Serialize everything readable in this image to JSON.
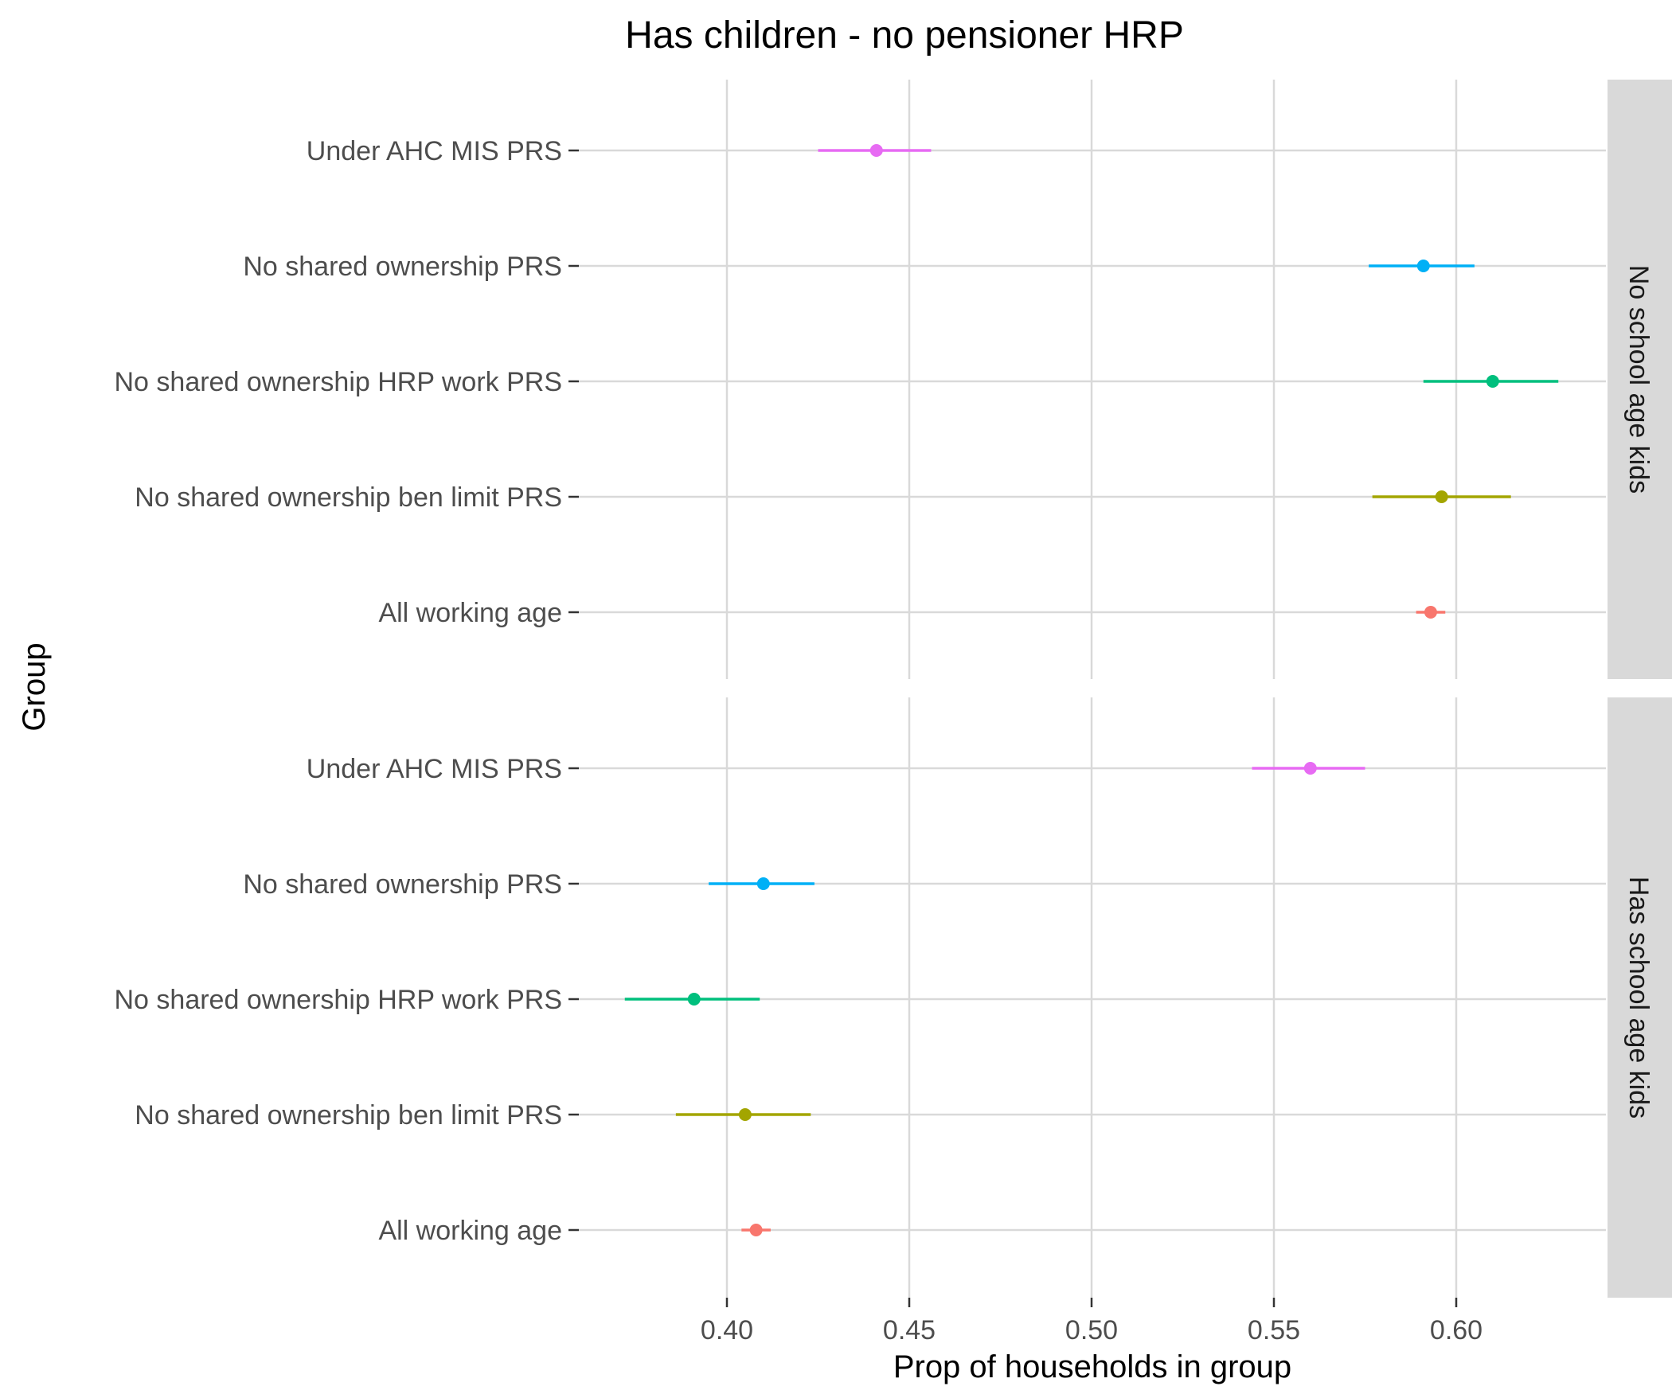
{
  "chart_data": {
    "type": "scatter",
    "title": "Has children - no pensioner HRP",
    "xlabel": "Prop of households in group",
    "ylabel": "Group",
    "xlim": [
      0.365,
      0.64
    ],
    "x_ticks": [
      0.4,
      0.45,
      0.5,
      0.55,
      0.6
    ],
    "x_tick_labels": [
      "0.40",
      "0.45",
      "0.50",
      "0.55",
      "0.60"
    ],
    "grid": true,
    "legend": "none",
    "categories": [
      "Under AHC MIS PRS",
      "No shared ownership PRS",
      "No shared ownership HRP work PRS",
      "No shared ownership ben limit PRS",
      "All working age"
    ],
    "colors": {
      "Under AHC MIS PRS": "#e76bf3",
      "No shared ownership PRS": "#00b0f6",
      "No shared ownership HRP work PRS": "#00bf7d",
      "No shared ownership ben limit PRS": "#a3a500",
      "All working age": "#f8766d"
    },
    "panels": [
      {
        "strip_label": "No school age kids",
        "points": [
          {
            "group": "Under AHC MIS PRS",
            "value": 0.441,
            "lower": 0.425,
            "upper": 0.456
          },
          {
            "group": "No shared ownership PRS",
            "value": 0.591,
            "lower": 0.576,
            "upper": 0.605
          },
          {
            "group": "No shared ownership HRP work PRS",
            "value": 0.61,
            "lower": 0.591,
            "upper": 0.628
          },
          {
            "group": "No shared ownership ben limit PRS",
            "value": 0.596,
            "lower": 0.577,
            "upper": 0.615
          },
          {
            "group": "All working age",
            "value": 0.593,
            "lower": 0.589,
            "upper": 0.597
          }
        ]
      },
      {
        "strip_label": "Has school age kids",
        "points": [
          {
            "group": "Under AHC MIS PRS",
            "value": 0.56,
            "lower": 0.544,
            "upper": 0.575
          },
          {
            "group": "No shared ownership PRS",
            "value": 0.41,
            "lower": 0.395,
            "upper": 0.424
          },
          {
            "group": "No shared ownership HRP work PRS",
            "value": 0.391,
            "lower": 0.372,
            "upper": 0.409
          },
          {
            "group": "No shared ownership ben limit PRS",
            "value": 0.405,
            "lower": 0.386,
            "upper": 0.423
          },
          {
            "group": "All working age",
            "value": 0.408,
            "lower": 0.404,
            "upper": 0.412
          }
        ]
      }
    ]
  }
}
